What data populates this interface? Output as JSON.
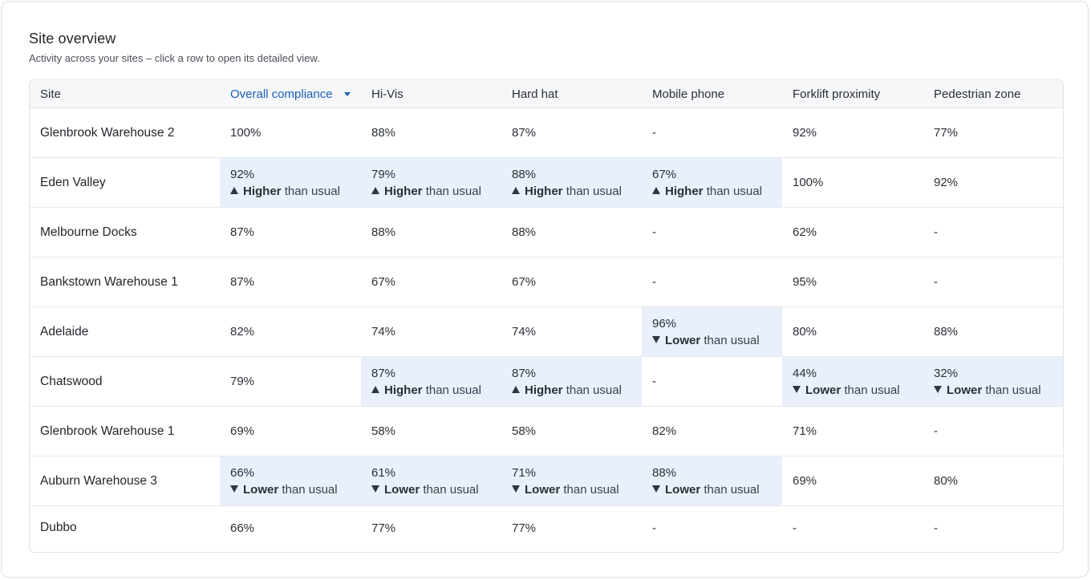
{
  "header": {
    "title": "Site overview",
    "subtitle": "Activity across your sites – click a row to open its detailed view."
  },
  "columns": [
    "Site",
    "Overall compliance",
    "Hi-Vis",
    "Hard hat",
    "Mobile phone",
    "Forklift proximity",
    "Pedestrian zone"
  ],
  "sorted_column": "Overall compliance",
  "trend_labels": {
    "higher_word": "Higher",
    "lower_word": "Lower",
    "suffix": "than usual"
  },
  "rows": [
    {
      "site": "Glenbrook Warehouse 2",
      "cells": [
        {
          "value": "100%"
        },
        {
          "value": "88%"
        },
        {
          "value": "87%"
        },
        {
          "value": "-"
        },
        {
          "value": "92%"
        },
        {
          "value": "77%"
        }
      ]
    },
    {
      "site": "Eden Valley",
      "cells": [
        {
          "value": "92%",
          "trend": "higher"
        },
        {
          "value": "79%",
          "trend": "higher"
        },
        {
          "value": "88%",
          "trend": "higher"
        },
        {
          "value": "67%",
          "trend": "higher"
        },
        {
          "value": "100%"
        },
        {
          "value": "92%"
        }
      ]
    },
    {
      "site": "Melbourne Docks",
      "cells": [
        {
          "value": "87%"
        },
        {
          "value": "88%"
        },
        {
          "value": "88%"
        },
        {
          "value": "-"
        },
        {
          "value": "62%"
        },
        {
          "value": "-"
        }
      ]
    },
    {
      "site": "Bankstown Warehouse 1",
      "cells": [
        {
          "value": "87%"
        },
        {
          "value": "67%"
        },
        {
          "value": "67%"
        },
        {
          "value": "-"
        },
        {
          "value": "95%"
        },
        {
          "value": "-"
        }
      ]
    },
    {
      "site": "Adelaide",
      "cells": [
        {
          "value": "82%"
        },
        {
          "value": "74%"
        },
        {
          "value": "74%"
        },
        {
          "value": "96%",
          "trend": "lower"
        },
        {
          "value": "80%"
        },
        {
          "value": "88%"
        }
      ]
    },
    {
      "site": "Chatswood",
      "cells": [
        {
          "value": "79%"
        },
        {
          "value": "87%",
          "trend": "higher"
        },
        {
          "value": "87%",
          "trend": "higher"
        },
        {
          "value": "-"
        },
        {
          "value": "44%",
          "trend": "lower"
        },
        {
          "value": "32%",
          "trend": "lower"
        }
      ]
    },
    {
      "site": "Glenbrook Warehouse 1",
      "cells": [
        {
          "value": "69%"
        },
        {
          "value": "58%"
        },
        {
          "value": "58%"
        },
        {
          "value": "82%"
        },
        {
          "value": "71%"
        },
        {
          "value": "-"
        }
      ]
    },
    {
      "site": "Auburn Warehouse 3",
      "cells": [
        {
          "value": "66%",
          "trend": "lower"
        },
        {
          "value": "61%",
          "trend": "lower"
        },
        {
          "value": "71%",
          "trend": "lower"
        },
        {
          "value": "88%",
          "trend": "lower"
        },
        {
          "value": "69%"
        },
        {
          "value": "80%"
        }
      ]
    },
    {
      "site": "Dubbo",
      "cells": [
        {
          "value": "66%"
        },
        {
          "value": "77%"
        },
        {
          "value": "77%"
        },
        {
          "value": "-"
        },
        {
          "value": "-"
        },
        {
          "value": "-"
        }
      ]
    }
  ],
  "colors": {
    "accent": "#1a5fb4",
    "highlight_bg": "#e9f0fb",
    "header_bg": "#f6f7f9"
  },
  "icons": {
    "up": "triangle-up-icon",
    "down": "triangle-down-icon",
    "sort": "caret-down-icon"
  }
}
